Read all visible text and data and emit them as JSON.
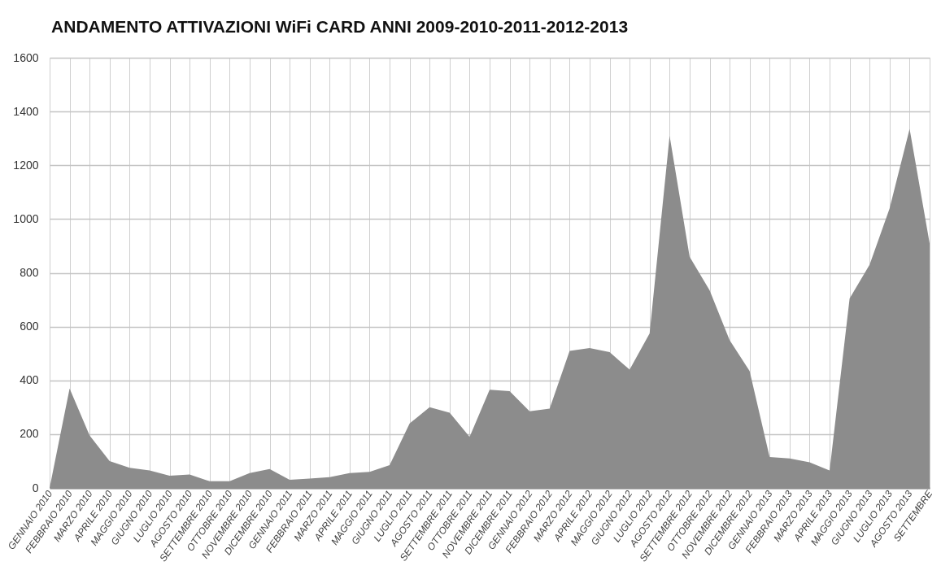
{
  "chart_data": {
    "type": "area",
    "title": "ANDAMENTO ATTIVAZIONI WiFi CARD ANNI 2009-2010-2011-2012-2013",
    "categories": [
      "GENNAIO 2010",
      "FEBBRAIO 2010",
      "MARZO 2010",
      "APRILE 2010",
      "MAGGIO 2010",
      "GIUGNO 2010",
      "LUGLIO 2010",
      "AGOSTO 2010",
      "SETTEMBRE 2010",
      "OTTOBRE 2010",
      "NOVEMBRE 2010",
      "DICEMBRE 2010",
      "GENNAIO 2011",
      "FEBBRAIO 2011",
      "MARZO 2011",
      "APRILE 2011",
      "MAGGIO 2011",
      "GIUGNO 2011",
      "LUGLIO 2011",
      "AGOSTO 2011",
      "SETTEMBRE 2011",
      "OTTOBRE 2011",
      "NOVEMBRE 2011",
      "DICEMBRE 2011",
      "GENNAIO 2012",
      "FEBBRAIO 2012",
      "MARZO 2012",
      "APRILE 2012",
      "MAGGIO 2012",
      "GIUGNO 2012",
      "LUGLIO 2012",
      "AGOSTO 2012",
      "SETTEMBRE 2012",
      "OTTOBRE 2012",
      "NOVEMBRE 2012",
      "DICEMBRE 2012",
      "GENNAIO 2013",
      "FEBBRAIO 2013",
      "MARZO 2013",
      "APRILE 2013",
      "MAGGIO 2013",
      "GIUGNO 2013",
      "LUGLIO 2013",
      "AGOSTO 2013",
      "SETTEMBRE"
    ],
    "values": [
      0,
      370,
      195,
      100,
      75,
      65,
      45,
      50,
      25,
      25,
      55,
      70,
      30,
      35,
      40,
      55,
      60,
      85,
      240,
      300,
      280,
      190,
      365,
      360,
      285,
      295,
      510,
      520,
      505,
      440,
      575,
      1310,
      860,
      735,
      550,
      435,
      115,
      110,
      95,
      65,
      705,
      830,
      1040,
      1335,
      910
    ],
    "color": "#8c8c8c",
    "ylim": [
      0,
      1600
    ],
    "yticks": [
      0,
      200,
      400,
      600,
      800,
      1000,
      1200,
      1400,
      1600
    ],
    "grid": true
  }
}
